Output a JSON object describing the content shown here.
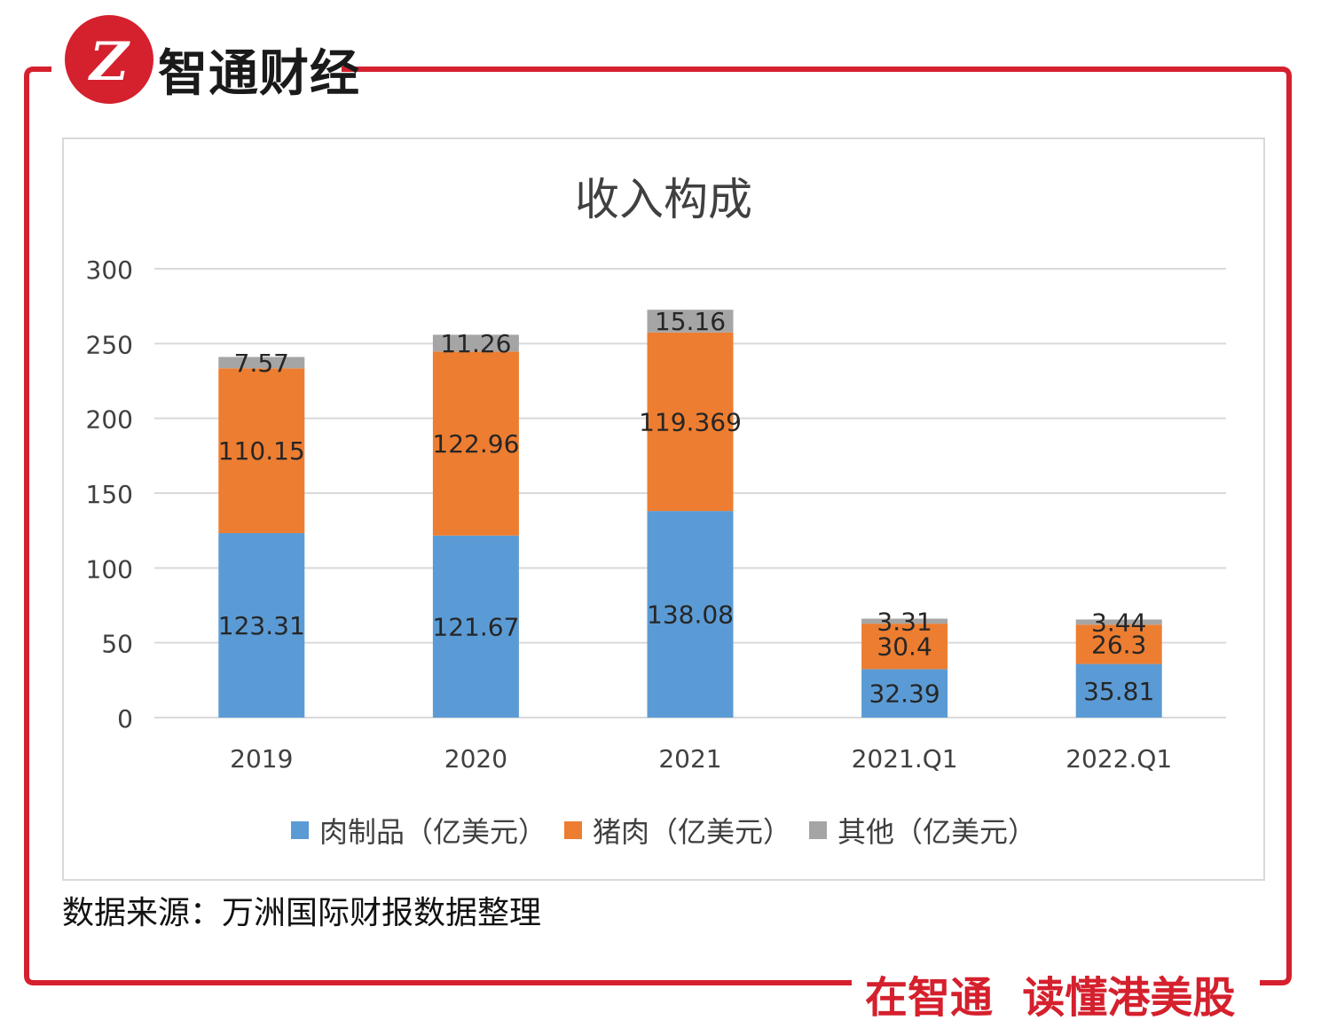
{
  "brand": {
    "logo_glyph": "Z",
    "name": "智通财经",
    "red": "#d5202d"
  },
  "source_note": "数据来源：万洲国际财报数据整理",
  "slogan": "在智通  读懂港美股",
  "chart_data": {
    "type": "bar",
    "stacked": true,
    "title": "收入构成",
    "categories": [
      "2019",
      "2020",
      "2021",
      "2021.Q1",
      "2022.Q1"
    ],
    "ylim": [
      0,
      300
    ],
    "yticks": [
      0,
      50,
      100,
      150,
      200,
      250,
      300
    ],
    "grid": true,
    "legend_position": "bottom",
    "series": [
      {
        "name": "肉制品（亿美元）",
        "color": "#5b9bd5",
        "values": [
          123.31,
          121.67,
          138.08,
          32.39,
          35.81
        ],
        "labels": [
          "123.31",
          "121.67",
          "138.08",
          "32.39",
          "35.81"
        ]
      },
      {
        "name": "猪肉（亿美元）",
        "color": "#ed7d31",
        "values": [
          110.15,
          122.96,
          119.369,
          30.4,
          26.3
        ],
        "labels": [
          "110.15",
          "122.96",
          "119.369",
          "30.4",
          "26.3"
        ]
      },
      {
        "name": "其他（亿美元）",
        "color": "#a5a5a5",
        "values": [
          7.57,
          11.26,
          15.16,
          3.31,
          3.44
        ],
        "labels": [
          "7.57",
          "11.26",
          "15.16",
          "3.31",
          "3.44"
        ]
      }
    ]
  }
}
